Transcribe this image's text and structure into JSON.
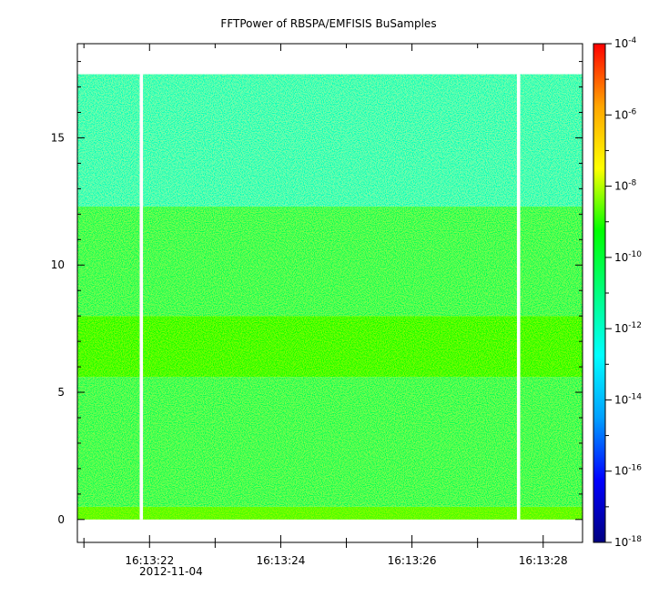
{
  "chart_data": {
    "type": "heatmap",
    "title": "FFTPower of RBSPA/EMFISIS  BuSamples",
    "xlabel": "",
    "ylabel": "",
    "date_label": "2012-11-04",
    "x_ticks": [
      {
        "value": "16:13:22",
        "label": "16:13:22"
      },
      {
        "value": "16:13:24",
        "label": "16:13:24"
      },
      {
        "value": "16:13:26",
        "label": "16:13:26"
      },
      {
        "value": "16:13:28",
        "label": "16:13:28"
      }
    ],
    "x_range": [
      "16:13:20.9",
      "16:13:28.6"
    ],
    "y_ticks": [
      0,
      5,
      10,
      15
    ],
    "y_range": [
      -0.9,
      18.7
    ],
    "data_y_range": [
      0,
      17.5
    ],
    "gaps": [
      {
        "start": "16:13:21.85",
        "end": "16:13:21.9"
      },
      {
        "start": "16:13:27.6",
        "end": "16:13:27.65"
      }
    ],
    "colorbar": {
      "scale": "log",
      "range": [
        1e-18,
        0.0001
      ],
      "ticks": [
        {
          "base": "10",
          "exp": "-18"
        },
        {
          "base": "10",
          "exp": "-16"
        },
        {
          "base": "10",
          "exp": "-14"
        },
        {
          "base": "10",
          "exp": "-12"
        },
        {
          "base": "10",
          "exp": "-10"
        },
        {
          "base": "10",
          "exp": "-8"
        },
        {
          "base": "10",
          "exp": "-6"
        },
        {
          "base": "10",
          "exp": "-4"
        }
      ],
      "colors": [
        "#000080",
        "#0000ff",
        "#00a0ff",
        "#00ffff",
        "#00ff80",
        "#00ff00",
        "#ffff00",
        "#ffa500",
        "#ff0000"
      ]
    },
    "bands": [
      {
        "y_from": 0,
        "y_to": 0.5,
        "level_exp": -8.8
      },
      {
        "y_from": 0.5,
        "y_to": 5.6,
        "level_exp": -10.4
      },
      {
        "y_from": 5.6,
        "y_to": 8.0,
        "level_exp": -9.2
      },
      {
        "y_from": 8.0,
        "y_to": 12.3,
        "level_exp": -10.4
      },
      {
        "y_from": 12.3,
        "y_to": 17.5,
        "level_exp": -11.8
      }
    ]
  }
}
